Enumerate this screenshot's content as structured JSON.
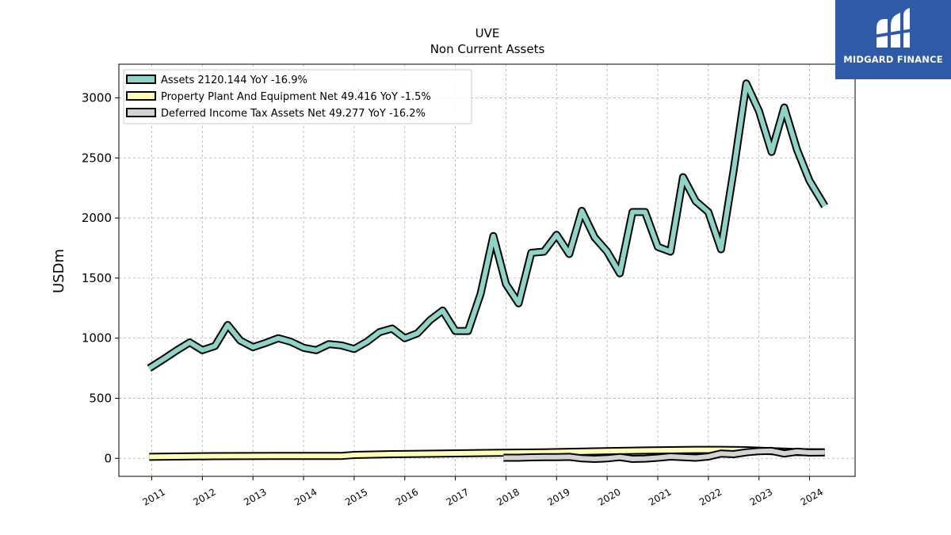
{
  "chart_data": {
    "type": "line",
    "title": "UVE",
    "subtitle": "Non Current  Assets",
    "ylabel": "USDm",
    "xlabel": "",
    "ylim": [
      -150,
      3280
    ],
    "xlim": [
      2010.35,
      2024.9
    ],
    "yticks": [
      0,
      500,
      1000,
      1500,
      2000,
      2500,
      3000
    ],
    "xticks": [
      "2011",
      "2012",
      "2013",
      "2014",
      "2015",
      "2016",
      "2017",
      "2018",
      "2019",
      "2020",
      "2021",
      "2022",
      "2023",
      "2024"
    ],
    "grid": true,
    "legend_position": "top-left",
    "series": [
      {
        "name": "Assets  2120.144 YoY -16.9%",
        "color": "#8dd3c7",
        "x": [
          2010.95,
          2011.25,
          2011.5,
          2011.75,
          2012.0,
          2012.25,
          2012.5,
          2012.75,
          2013.0,
          2013.25,
          2013.5,
          2013.75,
          2014.0,
          2014.25,
          2014.5,
          2014.75,
          2015.0,
          2015.25,
          2015.5,
          2015.75,
          2016.0,
          2016.25,
          2016.5,
          2016.75,
          2017.0,
          2017.25,
          2017.5,
          2017.75,
          2018.0,
          2018.25,
          2018.5,
          2018.75,
          2019.0,
          2019.25,
          2019.5,
          2019.75,
          2020.0,
          2020.25,
          2020.5,
          2020.75,
          2021.0,
          2021.25,
          2021.5,
          2021.75,
          2022.0,
          2022.25,
          2022.5,
          2022.75,
          2023.0,
          2023.25,
          2023.5,
          2023.75,
          2024.0,
          2024.3
        ],
        "values": [
          750,
          830,
          900,
          965,
          900,
          935,
          1110,
          980,
          925,
          960,
          1000,
          970,
          920,
          900,
          950,
          940,
          910,
          970,
          1050,
          1080,
          1000,
          1040,
          1150,
          1230,
          1060,
          1060,
          1370,
          1850,
          1450,
          1290,
          1710,
          1720,
          1860,
          1700,
          2060,
          1840,
          1720,
          1540,
          2050,
          2050,
          1760,
          1720,
          2340,
          2140,
          2050,
          1740,
          2400,
          3120,
          2890,
          2550,
          2920,
          2570,
          2310,
          2100
        ]
      },
      {
        "name": "Property Plant And Equipment Net  49.416 YoY -1.5%",
        "color": "#ffffb3",
        "x": [
          2010.95,
          2012.25,
          2013.5,
          2014.75,
          2015.0,
          2015.75,
          2016.75,
          2017.75,
          2018.75,
          2019.75,
          2020.75,
          2021.75,
          2022.25,
          2022.75,
          2023.25,
          2023.75,
          2024.3
        ],
        "values": [
          12,
          18,
          20,
          20,
          28,
          35,
          40,
          45,
          50,
          58,
          65,
          70,
          70,
          68,
          60,
          52,
          50
        ]
      },
      {
        "name": "Deferred Income Tax Assets Net  49.277 YoY -16.2%",
        "color": "#d3d3d3",
        "x": [
          2017.95,
          2018.25,
          2018.5,
          2018.75,
          2019.0,
          2019.25,
          2019.5,
          2019.75,
          2020.0,
          2020.25,
          2020.5,
          2020.75,
          2021.0,
          2021.25,
          2021.5,
          2021.75,
          2022.0,
          2022.25,
          2022.5,
          2022.75,
          2023.0,
          2023.25,
          2023.5,
          2023.75,
          2024.0,
          2024.3
        ],
        "values": [
          5,
          5,
          8,
          10,
          10,
          12,
          0,
          -5,
          0,
          10,
          -5,
          -2,
          5,
          15,
          10,
          5,
          15,
          40,
          35,
          50,
          60,
          62,
          40,
          55,
          48,
          50
        ]
      }
    ]
  }
}
